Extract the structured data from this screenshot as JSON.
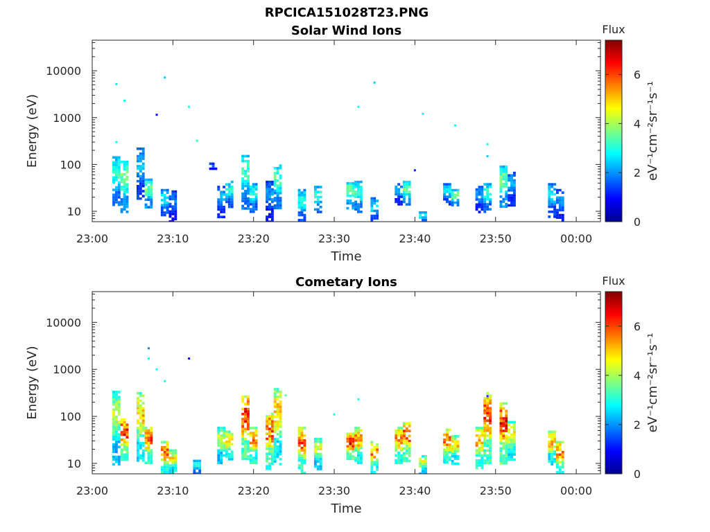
{
  "figure_title": "RPCICA151028T23.PNG",
  "colormap": [
    "#00008f",
    "#0000ff",
    "#007fff",
    "#00ffff",
    "#7fff7f",
    "#ffff00",
    "#ff7f00",
    "#ff0000",
    "#7f0000"
  ],
  "chart_data": [
    {
      "type": "heatmap",
      "title": "Solar Wind Ions",
      "xlabel": "Time",
      "ylabel": "Energy (eV)",
      "y_scale": "log",
      "xlim": [
        "23:00",
        "00:03"
      ],
      "ylim": [
        6,
        45000
      ],
      "x_ticks": [
        "23:00",
        "23:10",
        "23:20",
        "23:30",
        "23:40",
        "23:50",
        "00:00"
      ],
      "y_ticks": [
        {
          "value": 10,
          "label": "10"
        },
        {
          "value": 100,
          "label": "100"
        },
        {
          "value": 1000,
          "label": "1000"
        },
        {
          "value": 10000,
          "label": "10000"
        }
      ],
      "colorbar": {
        "label": "Flux",
        "units_label": "eV⁻¹cm⁻²sr⁻¹s⁻¹",
        "range": [
          0,
          7.4
        ],
        "ticks": [
          "0",
          "2",
          "4",
          "6"
        ]
      },
      "bursts": [
        {
          "t": "23:03",
          "emin": 13,
          "emax": 150,
          "flux": 3.2
        },
        {
          "t": "23:04",
          "emin": 10,
          "emax": 120,
          "flux": 3.8
        },
        {
          "t": "23:06",
          "emin": 18,
          "emax": 230,
          "flux": 2.4
        },
        {
          "t": "23:07",
          "emin": 12,
          "emax": 50,
          "flux": 3.6
        },
        {
          "t": "23:09",
          "emin": 8,
          "emax": 30,
          "flux": 2.8
        },
        {
          "t": "23:10",
          "emin": 6,
          "emax": 28,
          "flux": 1.8
        },
        {
          "t": "23:15",
          "emin": 80,
          "emax": 110,
          "flux": 1.9
        },
        {
          "t": "23:16",
          "emin": 8,
          "emax": 35,
          "flux": 2.2
        },
        {
          "t": "23:17",
          "emin": 12,
          "emax": 45,
          "flux": 3.0
        },
        {
          "t": "23:19",
          "emin": 12,
          "emax": 160,
          "flux": 3.3
        },
        {
          "t": "23:20",
          "emin": 10,
          "emax": 40,
          "flux": 3.1
        },
        {
          "t": "23:22",
          "emin": 6,
          "emax": 45,
          "flux": 2.0
        },
        {
          "t": "23:23",
          "emin": 12,
          "emax": 100,
          "flux": 3.4
        },
        {
          "t": "23:26",
          "emin": 6,
          "emax": 30,
          "flux": 3.0
        },
        {
          "t": "23:28",
          "emin": 10,
          "emax": 35,
          "flux": 3.2
        },
        {
          "t": "23:32",
          "emin": 12,
          "emax": 42,
          "flux": 3.8
        },
        {
          "t": "23:33",
          "emin": 10,
          "emax": 45,
          "flux": 3.3
        },
        {
          "t": "23:35",
          "emin": 6,
          "emax": 20,
          "flux": 2.6
        },
        {
          "t": "23:38",
          "emin": 15,
          "emax": 40,
          "flux": 2.3
        },
        {
          "t": "23:39",
          "emin": 14,
          "emax": 45,
          "flux": 3.5
        },
        {
          "t": "23:41",
          "emin": 6,
          "emax": 10,
          "flux": 3.0
        },
        {
          "t": "23:44",
          "emin": 15,
          "emax": 40,
          "flux": 2.6
        },
        {
          "t": "23:45",
          "emin": 14,
          "emax": 30,
          "flux": 3.6
        },
        {
          "t": "23:48",
          "emin": 10,
          "emax": 35,
          "flux": 2.1
        },
        {
          "t": "23:49",
          "emin": 10,
          "emax": 40,
          "flux": 3.2
        },
        {
          "t": "23:51",
          "emin": 12,
          "emax": 95,
          "flux": 3.7
        },
        {
          "t": "23:52",
          "emin": 14,
          "emax": 70,
          "flux": 2.2
        },
        {
          "t": "23:57",
          "emin": 8,
          "emax": 40,
          "flux": 2.6
        },
        {
          "t": "23:58",
          "emin": 6,
          "emax": 30,
          "flux": 2.0
        }
      ],
      "isolated_points": [
        {
          "t": "23:03",
          "e": 5200,
          "flux": 2.6
        },
        {
          "t": "23:04",
          "e": 2300,
          "flux": 2.8
        },
        {
          "t": "23:03",
          "e": 300,
          "flux": 2.8
        },
        {
          "t": "23:08",
          "e": 1150,
          "flux": 1.0
        },
        {
          "t": "23:09",
          "e": 7200,
          "flux": 2.4
        },
        {
          "t": "23:12",
          "e": 1700,
          "flux": 2.9
        },
        {
          "t": "23:13",
          "e": 320,
          "flux": 3.2
        },
        {
          "t": "23:33",
          "e": 1700,
          "flux": 2.8
        },
        {
          "t": "23:35",
          "e": 5600,
          "flux": 2.4
        },
        {
          "t": "23:41",
          "e": 1200,
          "flux": 2.9
        },
        {
          "t": "23:45",
          "e": 680,
          "flux": 2.8
        },
        {
          "t": "23:49",
          "e": 270,
          "flux": 2.8
        },
        {
          "t": "23:49",
          "e": 150,
          "flux": 2.4
        },
        {
          "t": "23:40",
          "e": 75,
          "flux": 1.2
        }
      ]
    },
    {
      "type": "heatmap",
      "title": "Cometary Ions",
      "xlabel": "Time",
      "ylabel": "Energy (eV)",
      "y_scale": "log",
      "xlim": [
        "23:00",
        "00:03"
      ],
      "ylim": [
        6,
        45000
      ],
      "x_ticks": [
        "23:00",
        "23:10",
        "23:20",
        "23:30",
        "23:40",
        "23:50",
        "00:00"
      ],
      "y_ticks": [
        {
          "value": 10,
          "label": "10"
        },
        {
          "value": 100,
          "label": "100"
        },
        {
          "value": 1000,
          "label": "1000"
        },
        {
          "value": 10000,
          "label": "10000"
        }
      ],
      "colorbar": {
        "label": "Flux",
        "units_label": "eV⁻¹cm⁻²sr⁻¹s⁻¹",
        "range": [
          0,
          7.4
        ],
        "ticks": [
          "0",
          "2",
          "4",
          "6"
        ]
      },
      "bursts": [
        {
          "t": "23:03",
          "emin": 10,
          "emax": 350,
          "flux": 4.2
        },
        {
          "t": "23:04",
          "emin": 12,
          "emax": 90,
          "flux": 6.2
        },
        {
          "t": "23:06",
          "emin": 12,
          "emax": 330,
          "flux": 5.0
        },
        {
          "t": "23:07",
          "emin": 10,
          "emax": 60,
          "flux": 6.0
        },
        {
          "t": "23:09",
          "emin": 6,
          "emax": 30,
          "flux": 5.8
        },
        {
          "t": "23:10",
          "emin": 6,
          "emax": 20,
          "flux": 4.8
        },
        {
          "t": "23:13",
          "emin": 6,
          "emax": 12,
          "flux": 3.0
        },
        {
          "t": "23:16",
          "emin": 10,
          "emax": 60,
          "flux": 4.4
        },
        {
          "t": "23:17",
          "emin": 12,
          "emax": 50,
          "flux": 5.2
        },
        {
          "t": "23:19",
          "emin": 12,
          "emax": 280,
          "flux": 6.3
        },
        {
          "t": "23:20",
          "emin": 10,
          "emax": 60,
          "flux": 5.6
        },
        {
          "t": "23:22",
          "emin": 8,
          "emax": 120,
          "flux": 6.0
        },
        {
          "t": "23:23",
          "emin": 10,
          "emax": 400,
          "flux": 5.0
        },
        {
          "t": "23:26",
          "emin": 6,
          "emax": 60,
          "flux": 5.8
        },
        {
          "t": "23:28",
          "emin": 8,
          "emax": 35,
          "flux": 4.6
        },
        {
          "t": "23:32",
          "emin": 12,
          "emax": 45,
          "flux": 6.4
        },
        {
          "t": "23:33",
          "emin": 10,
          "emax": 60,
          "flux": 5.4
        },
        {
          "t": "23:35",
          "emin": 6,
          "emax": 30,
          "flux": 5.6
        },
        {
          "t": "23:38",
          "emin": 10,
          "emax": 60,
          "flux": 5.6
        },
        {
          "t": "23:39",
          "emin": 12,
          "emax": 75,
          "flux": 6.1
        },
        {
          "t": "23:41",
          "emin": 6,
          "emax": 15,
          "flux": 4.4
        },
        {
          "t": "23:44",
          "emin": 10,
          "emax": 55,
          "flux": 5.8
        },
        {
          "t": "23:45",
          "emin": 10,
          "emax": 40,
          "flux": 4.9
        },
        {
          "t": "23:48",
          "emin": 8,
          "emax": 60,
          "flux": 5.5
        },
        {
          "t": "23:49",
          "emin": 10,
          "emax": 330,
          "flux": 6.2
        },
        {
          "t": "23:51",
          "emin": 10,
          "emax": 200,
          "flux": 6.4
        },
        {
          "t": "23:52",
          "emin": 12,
          "emax": 80,
          "flux": 5.0
        },
        {
          "t": "23:57",
          "emin": 10,
          "emax": 50,
          "flux": 5.2
        },
        {
          "t": "23:58",
          "emin": 6,
          "emax": 30,
          "flux": 5.8
        }
      ],
      "isolated_points": [
        {
          "t": "23:07",
          "e": 2800,
          "flux": 1.9
        },
        {
          "t": "23:07",
          "e": 1700,
          "flux": 2.9
        },
        {
          "t": "23:08",
          "e": 1000,
          "flux": 2.9
        },
        {
          "t": "23:09",
          "e": 560,
          "flux": 3.0
        },
        {
          "t": "23:12",
          "e": 1700,
          "flux": 1.0
        },
        {
          "t": "23:24",
          "e": 280,
          "flux": 3.4
        },
        {
          "t": "23:30",
          "e": 110,
          "flux": 3.0
        },
        {
          "t": "23:33",
          "e": 230,
          "flux": 3.0
        },
        {
          "t": "23:49",
          "e": 270,
          "flux": 1.2
        }
      ]
    }
  ]
}
